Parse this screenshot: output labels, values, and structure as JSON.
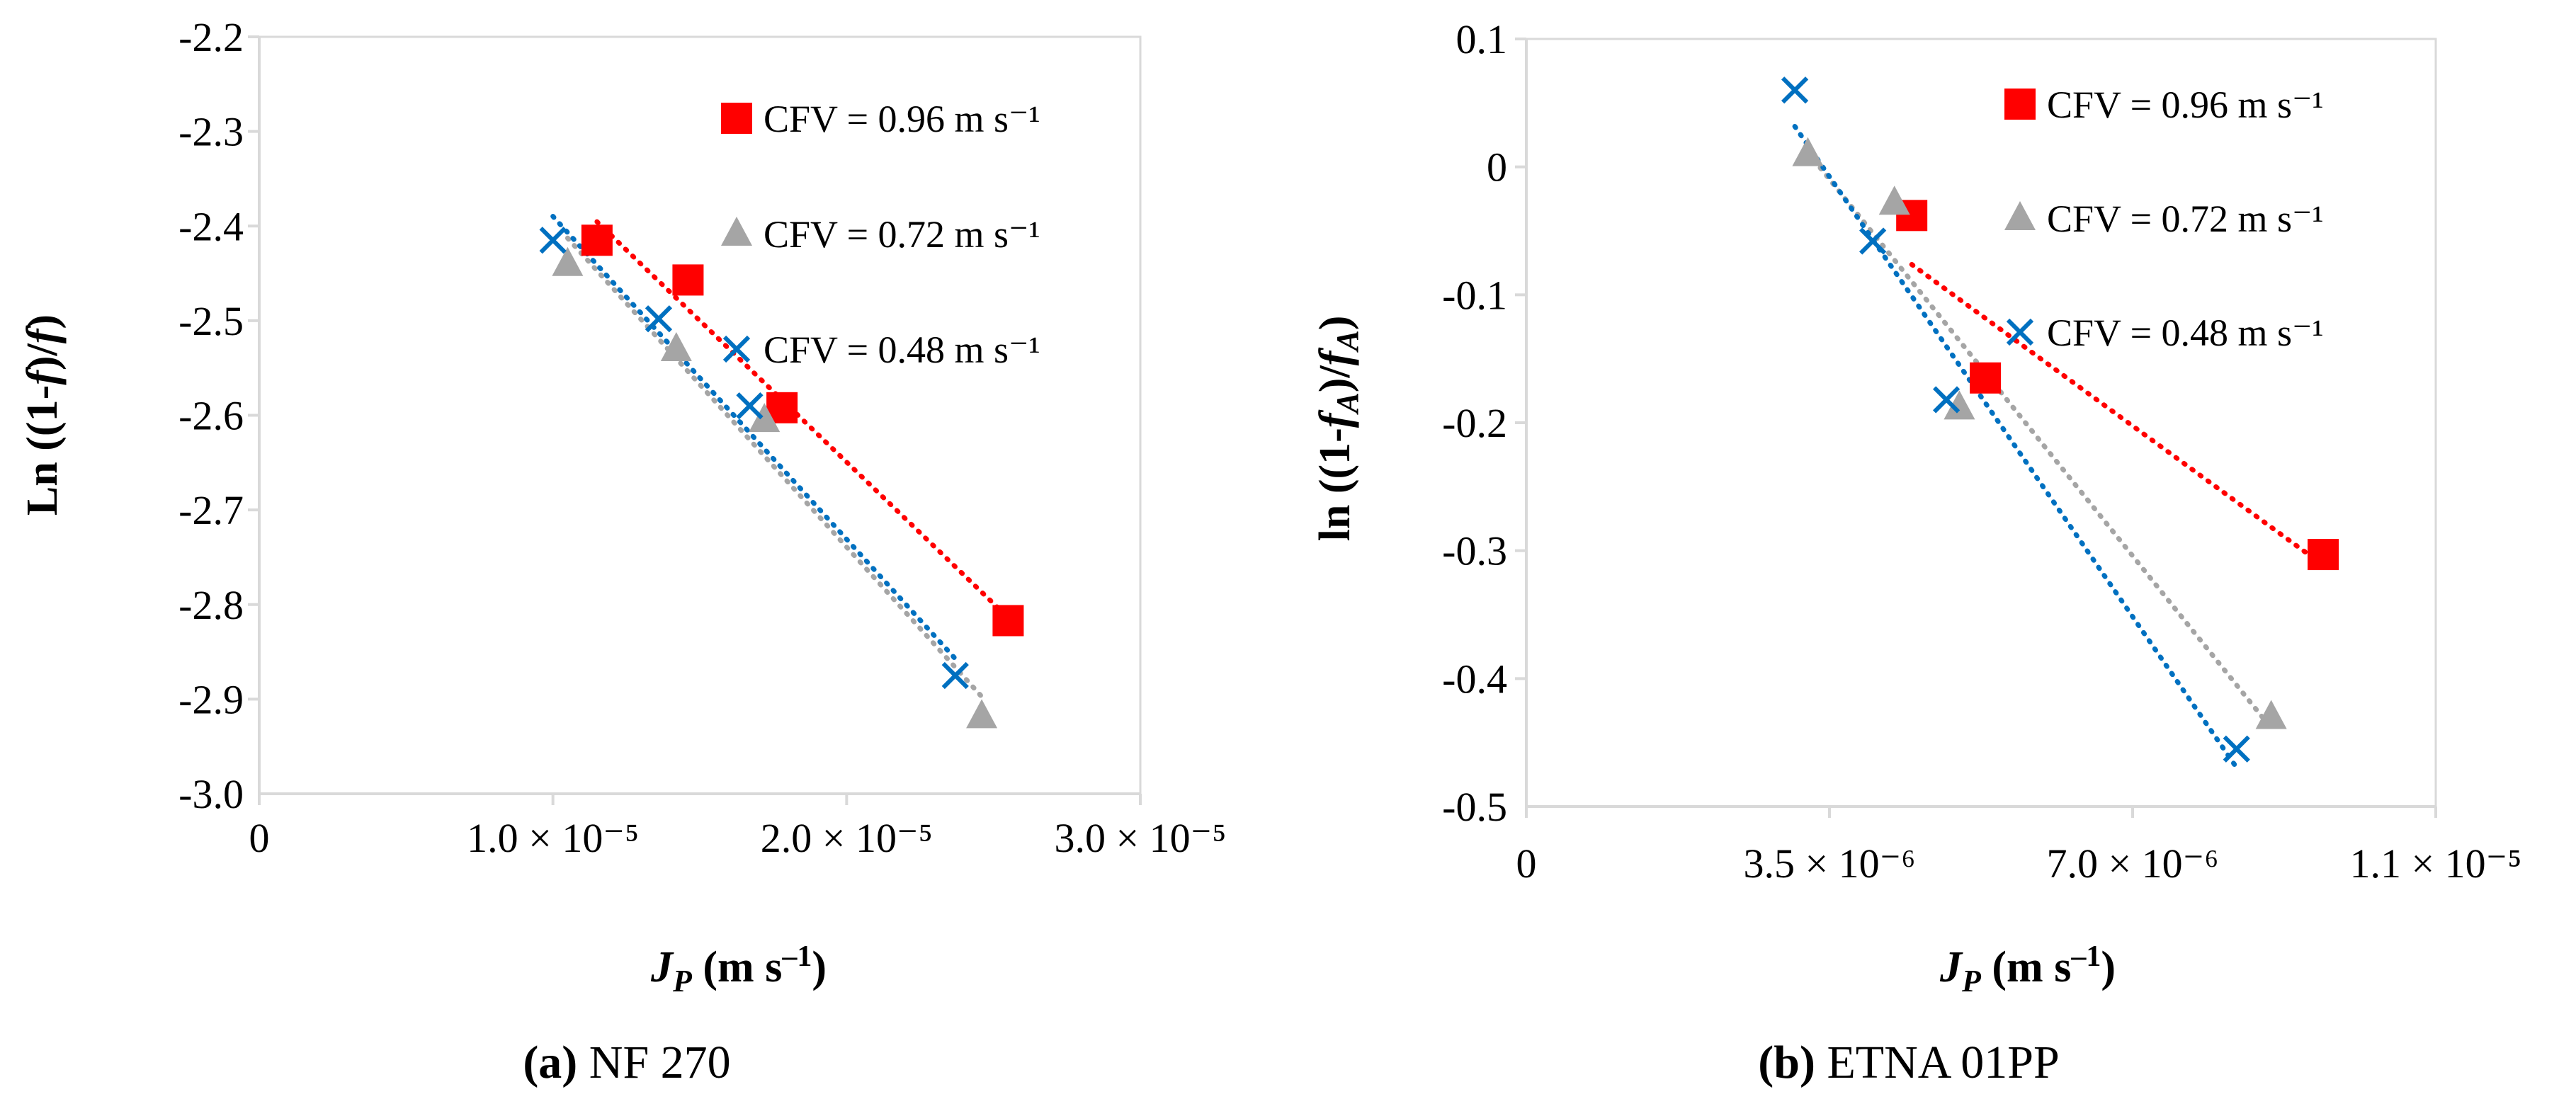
{
  "chart_data": [
    {
      "type": "scatter",
      "caption_label": "(a)",
      "caption_text": " NF 270",
      "ylabel_text": "Ln ((1-f)/f)",
      "xlabel_text": "JP (m s⁻¹)",
      "xlim": [
        0,
        3e-05
      ],
      "ylim": [
        -3.0,
        -2.2
      ],
      "x_ticks": [
        {
          "value": 0,
          "label": "0"
        },
        {
          "value": 1e-05,
          "label": "1.0 × 10⁻⁵"
        },
        {
          "value": 2e-05,
          "label": "2.0 × 10⁻⁵"
        },
        {
          "value": 3e-05,
          "label": "3.0 × 10⁻⁵"
        }
      ],
      "y_ticks": [
        {
          "value": -2.2,
          "label": "-2.2"
        },
        {
          "value": -2.3,
          "label": "-2.3"
        },
        {
          "value": -2.4,
          "label": "-2.4"
        },
        {
          "value": -2.5,
          "label": "-2.5"
        },
        {
          "value": -2.6,
          "label": "-2.6"
        },
        {
          "value": -2.7,
          "label": "-2.7"
        },
        {
          "value": -2.8,
          "label": "-2.8"
        },
        {
          "value": -2.9,
          "label": "-2.9"
        },
        {
          "value": -3.0,
          "label": "-3.0"
        }
      ],
      "series": [
        {
          "name": "CFV = 0.96 m s⁻¹",
          "marker": "square",
          "color": "#ff0000",
          "x": [
            1.15e-05,
            1.46e-05,
            1.78e-05,
            2.55e-05
          ],
          "y": [
            -2.415,
            -2.457,
            -2.592,
            -2.817
          ]
        },
        {
          "name": "CFV = 0.72 m s⁻¹",
          "marker": "triangle",
          "color": "#a5a5a5",
          "x": [
            1.05e-05,
            1.42e-05,
            1.72e-05,
            2.46e-05
          ],
          "y": [
            -2.44,
            -2.53,
            -2.605,
            -2.918
          ]
        },
        {
          "name": "CFV = 0.48 m s⁻¹",
          "marker": "cross",
          "color": "#0070c0",
          "x": [
            1e-05,
            1.36e-05,
            1.67e-05,
            2.37e-05
          ],
          "y": [
            -2.415,
            -2.498,
            -2.59,
            -2.875
          ]
        }
      ]
    },
    {
      "type": "scatter",
      "caption_label": "(b)",
      "caption_text": " ETNA 01PP",
      "ylabel_text": "ln ((1-fA)/fA)",
      "xlabel_text": "JP (m s⁻¹)",
      "xlim": [
        0,
        1.05e-05
      ],
      "ylim": [
        -0.5,
        0.1
      ],
      "x_ticks": [
        {
          "value": 0,
          "label": "0"
        },
        {
          "value": 3.5e-06,
          "label": "3.5 × 10⁻⁶"
        },
        {
          "value": 7e-06,
          "label": "7.0 × 10⁻⁶"
        },
        {
          "value": 1.05e-05,
          "label": "1.1 × 10⁻⁵"
        }
      ],
      "y_ticks": [
        {
          "value": 0.1,
          "label": "0.1"
        },
        {
          "value": 0,
          "label": "0"
        },
        {
          "value": -0.1,
          "label": "-0.1"
        },
        {
          "value": -0.2,
          "label": "-0.2"
        },
        {
          "value": -0.3,
          "label": "-0.3"
        },
        {
          "value": -0.4,
          "label": "-0.4"
        },
        {
          "value": -0.5,
          "label": "-0.5"
        }
      ],
      "series": [
        {
          "name": "CFV = 0.96 m s⁻¹",
          "marker": "square",
          "color": "#ff0000",
          "x": [
            4.45e-06,
            5.3e-06,
            9.2e-06
          ],
          "y": [
            -0.038,
            -0.165,
            -0.303
          ]
        },
        {
          "name": "CFV = 0.72 m s⁻¹",
          "marker": "triangle",
          "color": "#a5a5a5",
          "x": [
            3.25e-06,
            4.25e-06,
            5e-06,
            8.6e-06
          ],
          "y": [
            0.01,
            -0.028,
            -0.188,
            -0.43
          ]
        },
        {
          "name": "CFV = 0.48 m s⁻¹",
          "marker": "cross",
          "color": "#0070c0",
          "x": [
            3.1e-06,
            4e-06,
            4.85e-06,
            8.2e-06
          ],
          "y": [
            0.06,
            -0.058,
            -0.182,
            -0.455
          ]
        }
      ]
    }
  ]
}
